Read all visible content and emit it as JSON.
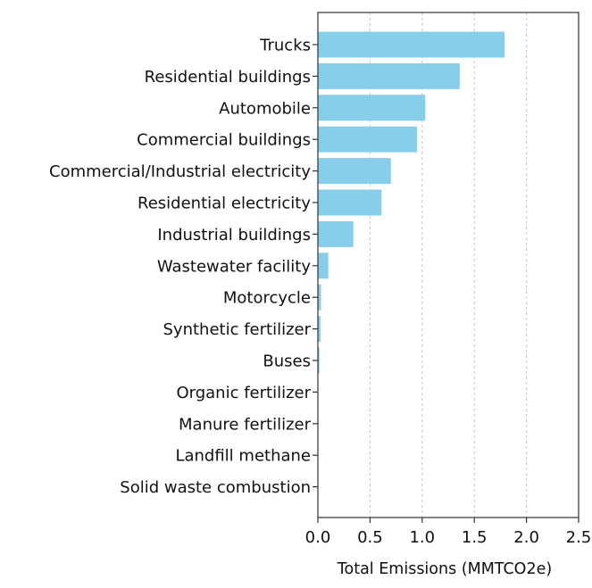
{
  "chart_data": {
    "type": "bar",
    "orientation": "horizontal",
    "categories": [
      "Trucks",
      "Residential buildings",
      "Automobile",
      "Commercial buildings",
      "Commercial/Industrial electricity",
      "Residential electricity",
      "Industrial buildings",
      "Wastewater facility",
      "Motorcycle",
      "Synthetic fertilizer",
      "Buses",
      "Organic fertilizer",
      "Manure fertilizer",
      "Landfill methane",
      "Solid waste combustion"
    ],
    "values": [
      1.79,
      1.36,
      1.03,
      0.95,
      0.7,
      0.61,
      0.34,
      0.1,
      0.03,
      0.025,
      0.015,
      0.003,
      0.002,
      0.001,
      0.001
    ],
    "title": "",
    "xlabel": "Total Emissions (MMTCO2e)",
    "ylabel": "",
    "xlim": [
      0.0,
      2.5
    ],
    "xticks": [
      "0.0",
      "0.5",
      "1.0",
      "1.5",
      "2.0",
      "2.5"
    ],
    "grid": "x-dashed",
    "legend": "none",
    "bar_color": "#87ceeb"
  }
}
